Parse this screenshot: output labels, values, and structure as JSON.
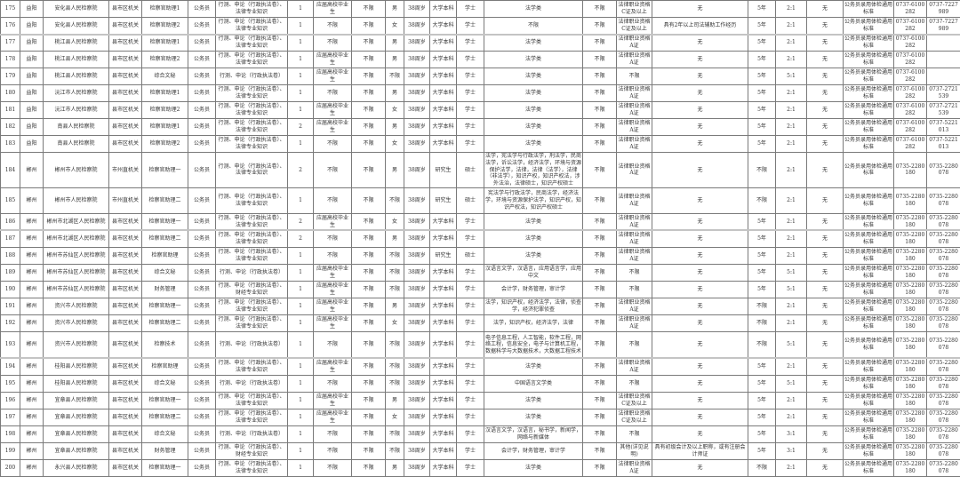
{
  "table": {
    "rows": [
      [
        "175",
        "益阳",
        "安化县人民检察院",
        "县市区机关",
        "检察官助理1",
        "公务员",
        "行测、申论（行政执法卷）、法律专业知识",
        "1",
        "应届高校毕业生",
        "不限",
        "男",
        "38周岁",
        "大学本科",
        "学士",
        "法学类",
        "不限",
        "法律职业资格C证及以上",
        "无",
        "5年",
        "2:1",
        "无",
        "公务员录用体检通用标准",
        "0737-6100282",
        "0737-7227989"
      ],
      [
        "176",
        "益阳",
        "安化县人民检察院",
        "县市区机关",
        "检察官助理2",
        "公务员",
        "行测、申论（行政执法卷）、法律专业知识",
        "1",
        "不限",
        "不限",
        "女",
        "38周岁",
        "大学本科",
        "学士",
        "不限",
        "不限",
        "法律职业资格C证及以上",
        "具有2年以上司法辅助工作经历",
        "5年",
        "2:1",
        "无",
        "公务员录用体检通用标准",
        "0737-6100282",
        "0737-7227989"
      ],
      [
        "177",
        "益阳",
        "桃江县人民检察院",
        "县市区机关",
        "检察官助理1",
        "公务员",
        "行测、申论（行政执法卷）、法律专业知识",
        "1",
        "不限",
        "不限",
        "男",
        "38周岁",
        "大学本科",
        "学士",
        "法学类",
        "不限",
        "法律职业资格A证",
        "无",
        "5年",
        "2:1",
        "无",
        "公务员录用体检通用标准",
        "0737-6100282",
        ""
      ],
      [
        "178",
        "益阳",
        "桃江县人民检察院",
        "县市区机关",
        "检察官助理2",
        "公务员",
        "行测、申论（行政执法卷）、法律专业知识",
        "1",
        "应届高校毕业生",
        "不限",
        "男",
        "38周岁",
        "大学本科",
        "学士",
        "法学类",
        "不限",
        "法律职业资格A证",
        "无",
        "5年",
        "2:1",
        "无",
        "公务员录用体检通用标准",
        "0737-6100282",
        ""
      ],
      [
        "179",
        "益阳",
        "桃江县人民检察院",
        "县市区机关",
        "综合文秘",
        "公务员",
        "行测、申论（行政执法卷）",
        "1",
        "应届高校毕业生",
        "不限",
        "不限",
        "38周岁",
        "大学本科",
        "学士",
        "法学类",
        "不限",
        "不限",
        "无",
        "5年",
        "5:1",
        "无",
        "公务员录用体检通用标准",
        "0737-6100282",
        ""
      ],
      [
        "180",
        "益阳",
        "沅江市人民检察院",
        "县市区机关",
        "检察官助理1",
        "公务员",
        "行测、申论（行政执法卷）、法律专业知识",
        "1",
        "不限",
        "不限",
        "男",
        "38周岁",
        "大学本科",
        "学士",
        "法学类",
        "不限",
        "法律职业资格A证",
        "无",
        "5年",
        "2:1",
        "无",
        "公务员录用体检通用标准",
        "0737-6100282",
        "0737-2721539"
      ],
      [
        "181",
        "益阳",
        "沅江市人民检察院",
        "县市区机关",
        "检察官助理2",
        "公务员",
        "行测、申论（行政执法卷）、法律专业知识",
        "1",
        "应届高校毕业生",
        "不限",
        "女",
        "38周岁",
        "大学本科",
        "学士",
        "法学类",
        "不限",
        "法律职业资格A证",
        "无",
        "5年",
        "2:1",
        "无",
        "公务员录用体检通用标准",
        "0737-6100282",
        "0737-2721539"
      ],
      [
        "182",
        "益阳",
        "南县人民检察院",
        "县市区机关",
        "检察官助理1",
        "公务员",
        "行测、申论（行政执法卷）、法律专业知识",
        "2",
        "应届高校毕业生",
        "不限",
        "男",
        "38周岁",
        "大学本科",
        "学士",
        "法学类",
        "不限",
        "法律职业资格A证",
        "无",
        "5年",
        "2:1",
        "无",
        "公务员录用体检通用标准",
        "0737-6100282",
        "0737-5221013"
      ],
      [
        "183",
        "益阳",
        "南县人民检察院",
        "县市区机关",
        "检察官助理2",
        "公务员",
        "行测、申论（行政执法卷）、法律专业知识",
        "1",
        "不限",
        "不限",
        "女",
        "38周岁",
        "大学本科",
        "学士",
        "法学类",
        "不限",
        "法律职业资格A证",
        "无",
        "5年",
        "2:1",
        "无",
        "公务员录用体检通用标准",
        "0737-6100282",
        "0737-5221013"
      ],
      [
        "184",
        "郴州",
        "郴州市人民检察院",
        "市州直机关",
        "检察官助理一",
        "公务员",
        "行测、申论（行政执法卷）、法律专业知识",
        "2",
        "不限",
        "不限",
        "男",
        "38周岁",
        "研究生",
        "硕士",
        "法学，宪法学与行政法学，刑法学，民商法学，诉讼法学，经济法学，环境与资源保护法学，法律，法律（法学），法律（非法学），知识产权，知识产权法，涉外法治，法律硕士，知识产权硕士",
        "不限",
        "法律职业资格A证",
        "无",
        "不限",
        "2:1",
        "无",
        "公务员录用体检通用标准",
        "0735-2280180",
        "0735-2280078"
      ],
      [
        "185",
        "郴州",
        "郴州市人民检察院",
        "市州直机关",
        "检察官助理二",
        "公务员",
        "行测、申论（行政执法卷）、法律专业知识",
        "1",
        "不限",
        "不限",
        "不限",
        "38周岁",
        "研究生",
        "硕士",
        "宪法学与行政法学，民商法学，经济法学，环境与资源保护法学，知识产权，知识产权法，知识产权硕士",
        "不限",
        "法律职业资格A证",
        "无",
        "不限",
        "2:1",
        "无",
        "公务员录用体检通用标准",
        "0735-2280180",
        "0735-2280078"
      ],
      [
        "186",
        "郴州",
        "郴州市北湖区人民检察院",
        "县市区机关",
        "检察官助理一",
        "公务员",
        "行测、申论（行政执法卷）、法律专业知识",
        "2",
        "应届高校毕业生",
        "不限",
        "女",
        "38周岁",
        "大学本科",
        "学士",
        "法学类",
        "不限",
        "法律职业资格A证",
        "无",
        "5年",
        "2:1",
        "无",
        "公务员录用体检通用标准",
        "0735-2280180",
        "0735-2280078"
      ],
      [
        "187",
        "郴州",
        "郴州市北湖区人民检察院",
        "县市区机关",
        "检察官助理二",
        "公务员",
        "行测、申论（行政执法卷）、法律专业知识",
        "2",
        "不限",
        "不限",
        "男",
        "38周岁",
        "大学本科",
        "学士",
        "法学类",
        "不限",
        "法律职业资格A证",
        "无",
        "5年",
        "2:1",
        "无",
        "公务员录用体检通用标准",
        "0735-2280180",
        "0735-2280078"
      ],
      [
        "188",
        "郴州",
        "郴州市苏仙区人民检察院",
        "县市区机关",
        "检察官助理",
        "公务员",
        "行测、申论（行政执法卷）、法律专业知识",
        "1",
        "不限",
        "不限",
        "不限",
        "38周岁",
        "研究生",
        "硕士",
        "法学类",
        "不限",
        "法律职业资格A证",
        "无",
        "5年",
        "2:1",
        "无",
        "公务员录用体检通用标准",
        "0735-2280180",
        "0735-2280078"
      ],
      [
        "189",
        "郴州",
        "郴州市苏仙区人民检察院",
        "县市区机关",
        "综合文秘",
        "公务员",
        "行测、申论（行政执法卷）",
        "1",
        "应届高校毕业生",
        "不限",
        "不限",
        "38周岁",
        "大学本科",
        "学士",
        "汉语言文学，汉语言，应用语言学，应用中文",
        "不限",
        "不限",
        "无",
        "5年",
        "5:1",
        "无",
        "公务员录用体检通用标准",
        "0735-2280180",
        "0735-2280078"
      ],
      [
        "190",
        "郴州",
        "郴州市苏仙区人民检察院",
        "县市区机关",
        "财务管理",
        "公务员",
        "行测、申论（行政执法卷）、财经专业知识",
        "1",
        "应届高校毕业生",
        "不限",
        "不限",
        "38周岁",
        "大学本科",
        "学士",
        "会计学，财务管理，审计学",
        "不限",
        "不限",
        "无",
        "5年",
        "5:1",
        "无",
        "公务员录用体检通用标准",
        "0735-2280180",
        "0735-2280078"
      ],
      [
        "191",
        "郴州",
        "资兴市人民检察院",
        "县市区机关",
        "检察官助理一",
        "公务员",
        "行测、申论（行政执法卷）、法律专业知识",
        "1",
        "应届高校毕业生",
        "不限",
        "男",
        "38周岁",
        "大学本科",
        "学士",
        "法学，知识产权，经济法学，法律，侦查学，经济犯罪侦查",
        "不限",
        "法律职业资格A证",
        "无",
        "不限",
        "2:1",
        "无",
        "公务员录用体检通用标准",
        "0735-2280180",
        "0735-2280078"
      ],
      [
        "192",
        "郴州",
        "资兴市人民检察院",
        "县市区机关",
        "检察官助理二",
        "公务员",
        "行测、申论（行政执法卷）、法律专业知识",
        "1",
        "应届高校毕业生",
        "不限",
        "女",
        "38周岁",
        "大学本科",
        "学士",
        "法学，知识产权，经济法学，法律",
        "不限",
        "法律职业资格A证",
        "无",
        "不限",
        "2:1",
        "无",
        "公务员录用体检通用标准",
        "0735-2280180",
        "0735-2280078"
      ],
      [
        "193",
        "郴州",
        "资兴市人民检察院",
        "县市区机关",
        "检察技术",
        "公务员",
        "行测、申论（行政执法卷）",
        "1",
        "不限",
        "不限",
        "不限",
        "38周岁",
        "大学本科",
        "学士",
        "电子信息工程，人工智能，软件工程，网络工程，信息安全，电子与计算机工程，数据科学与大数据技术，大数据工程技术",
        "不限",
        "不限",
        "无",
        "不限",
        "5:1",
        "无",
        "公务员录用体检通用标准",
        "0735-2280180",
        "0735-2280078"
      ],
      [
        "194",
        "郴州",
        "桂阳县人民检察院",
        "县市区机关",
        "检察官助理",
        "公务员",
        "行测、申论（行政执法卷）、法律专业知识",
        "1",
        "应届高校毕业生",
        "不限",
        "不限",
        "38周岁",
        "大学本科",
        "学士",
        "法学类",
        "不限",
        "法律职业资格A证",
        "无",
        "5年",
        "2:1",
        "无",
        "公务员录用体检通用标准",
        "0735-2280180",
        "0735-2280078"
      ],
      [
        "195",
        "郴州",
        "桂阳县人民检察院",
        "县市区机关",
        "综合文秘",
        "公务员",
        "行测、申论（行政执法卷）",
        "1",
        "不限",
        "不限",
        "不限",
        "38周岁",
        "大学本科",
        "学士",
        "中国语言文学类",
        "不限",
        "不限",
        "无",
        "5年",
        "5:1",
        "无",
        "公务员录用体检通用标准",
        "0735-2280180",
        "0735-2280078"
      ],
      [
        "196",
        "郴州",
        "宜章县人民检察院",
        "县市区机关",
        "检察官助理一",
        "公务员",
        "行测、申论（行政执法卷）、法律专业知识",
        "1",
        "应届高校毕业生",
        "不限",
        "男",
        "38周岁",
        "大学本科",
        "学士",
        "法学类",
        "不限",
        "法律职业资格C证及以上",
        "无",
        "5年",
        "2:1",
        "无",
        "公务员录用体检通用标准",
        "0735-2280180",
        "0735-2280078"
      ],
      [
        "197",
        "郴州",
        "宜章县人民检察院",
        "县市区机关",
        "检察官助理二",
        "公务员",
        "行测、申论（行政执法卷）、法律专业知识",
        "1",
        "应届高校毕业生",
        "不限",
        "女",
        "38周岁",
        "大学本科",
        "学士",
        "法学类",
        "不限",
        "法律职业资格C证及以上",
        "无",
        "5年",
        "2:1",
        "无",
        "公务员录用体检通用标准",
        "0735-2280180",
        "0735-2280078"
      ],
      [
        "198",
        "郴州",
        "宜章县人民检察院",
        "县市区机关",
        "综合文秘",
        "公务员",
        "行测、申论（行政执法卷）",
        "1",
        "不限",
        "不限",
        "不限",
        "38周岁",
        "大学本科",
        "学士",
        "汉语言文学，汉语言，秘书学，新闻学，网络与新媒体",
        "不限",
        "不限",
        "无",
        "5年",
        "3:1",
        "无",
        "公务员录用体检通用标准",
        "0735-2280180",
        "0735-2280078"
      ],
      [
        "199",
        "郴州",
        "宜章县人民检察院",
        "县市区机关",
        "财务管理",
        "公务员",
        "行测、申论（行政执法卷）、财经专业知识",
        "1",
        "不限",
        "不限",
        "不限",
        "38周岁",
        "大学本科",
        "学士",
        "会计学，财务管理，审计学",
        "不限",
        "其他(详见说明)",
        "具有初级会计及以上职称，或有注册会计师证",
        "5年",
        "3:1",
        "无",
        "公务员录用体检通用标准",
        "0735-2280180",
        "0735-2280078"
      ],
      [
        "200",
        "郴州",
        "永兴县人民检察院",
        "县市区机关",
        "检察官助理一",
        "公务员",
        "行测、申论（行政执法卷）、法律专业知识",
        "1",
        "不限",
        "不限",
        "男",
        "38周岁",
        "大学本科",
        "学士",
        "法学类",
        "不限",
        "法律职业资格A证",
        "无",
        "不限",
        "2:1",
        "无",
        "公务员录用体检通用标准",
        "0735-2280180",
        "0735-2280078"
      ]
    ]
  }
}
